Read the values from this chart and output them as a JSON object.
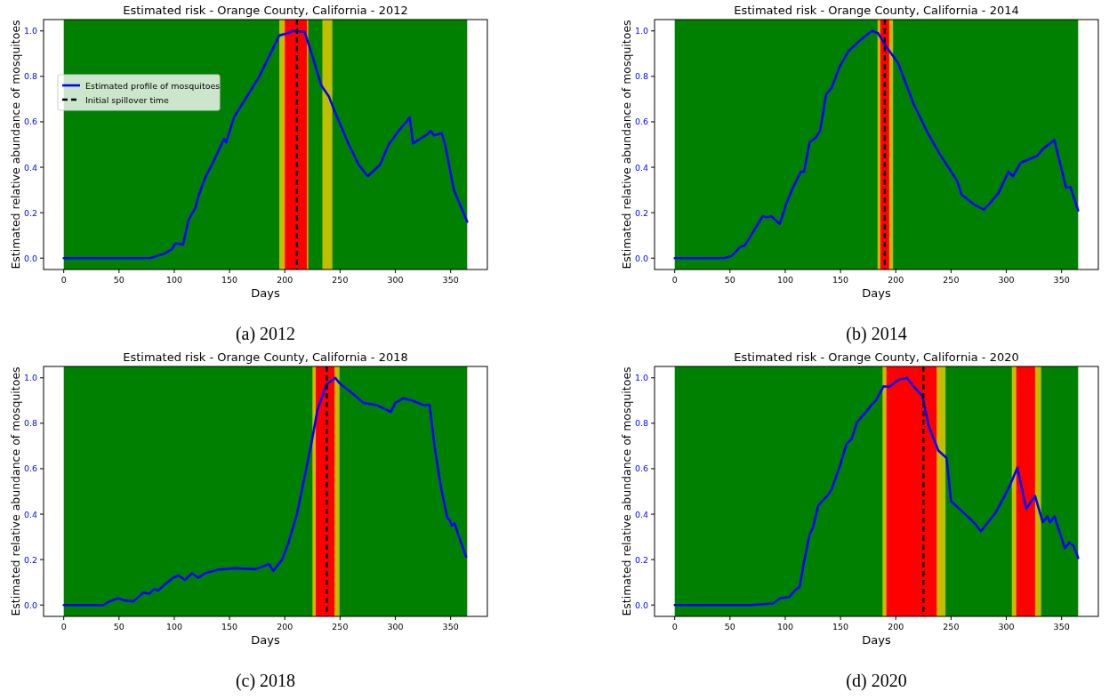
{
  "chart_data": [
    {
      "type": "line",
      "title": "Estimated risk - Orange County, California - 2012",
      "xlabel": "Days",
      "ylabel": "Estimated relative abundance of mosquitoes",
      "annotations": [
        "(a) 2012"
      ],
      "legend": "top left",
      "xlim": [
        -18.25,
        383.25
      ],
      "ylim": [
        -0.05,
        1.05
      ],
      "xticks": [
        0,
        50,
        100,
        150,
        200,
        250,
        300,
        350
      ],
      "yticks": [
        {
          "value": 0,
          "label": "0.0"
        },
        {
          "value": 0.2,
          "label": "0.2"
        },
        {
          "value": 0.4,
          "label": "0.4"
        },
        {
          "value": 0.6,
          "label": "0.6"
        },
        {
          "value": 0.8,
          "label": "0.8"
        },
        {
          "value": 1,
          "label": "1.0"
        }
      ],
      "grid": false,
      "line_style": "solid",
      "marker": "none",
      "bands": [
        {
          "axis": "x",
          "from": 0,
          "to": 365,
          "color": "#008000"
        },
        {
          "axis": "x",
          "from": 195,
          "to": 221,
          "color": "#bfbf00"
        },
        {
          "axis": "x",
          "from": 199,
          "to": 221,
          "color": "#ffa500"
        },
        {
          "axis": "x",
          "from": 200,
          "to": 220,
          "color": "#ff0000"
        },
        {
          "axis": "x",
          "from": 234,
          "to": 243,
          "color": "#bfbf00"
        }
      ],
      "ref_lines": [
        {
          "axis": "x",
          "value": 211,
          "label": "Initial spillover time",
          "color": "#000000",
          "line_style": "dashed"
        }
      ],
      "series": [
        {
          "name": "Estimated profile of mosquitoes",
          "color": "#0000ff",
          "x": [
            0,
            78,
            91,
            98,
            101,
            108,
            113,
            119,
            122,
            128,
            135,
            145,
            147,
            154,
            163,
            177,
            185,
            195,
            203,
            207,
            218,
            225,
            233,
            240,
            244,
            257,
            267,
            275,
            286,
            294,
            303,
            310,
            313,
            316,
            321,
            329,
            332,
            335,
            342,
            345,
            353,
            365
          ],
          "values": [
            0,
            0,
            0.02,
            0.04,
            0.065,
            0.06,
            0.17,
            0.22,
            0.275,
            0.355,
            0.42,
            0.525,
            0.51,
            0.62,
            0.69,
            0.8,
            0.88,
            0.98,
            0.99,
            1.0,
            0.995,
            0.89,
            0.76,
            0.71,
            0.66,
            0.51,
            0.41,
            0.36,
            0.41,
            0.5,
            0.56,
            0.6,
            0.62,
            0.505,
            0.52,
            0.545,
            0.56,
            0.54,
            0.55,
            0.5,
            0.3,
            0.16
          ]
        }
      ]
    },
    {
      "type": "line",
      "title": "Estimated risk - Orange County, California - 2014",
      "xlabel": "Days",
      "ylabel": "Estimated relative abundance of mosquitoes",
      "annotations": [
        "(b) 2014"
      ],
      "xlim": [
        -18.25,
        383.25
      ],
      "ylim": [
        -0.05,
        1.05
      ],
      "xticks": [
        0,
        50,
        100,
        150,
        200,
        250,
        300,
        350
      ],
      "yticks": [
        {
          "value": 0,
          "label": "0.0"
        },
        {
          "value": 0.2,
          "label": "0.2"
        },
        {
          "value": 0.4,
          "label": "0.4"
        },
        {
          "value": 0.6,
          "label": "0.6"
        },
        {
          "value": 0.8,
          "label": "0.8"
        },
        {
          "value": 1,
          "label": "1.0"
        }
      ],
      "grid": false,
      "line_style": "solid",
      "marker": "none",
      "bands": [
        {
          "axis": "x",
          "from": 0,
          "to": 365,
          "color": "#008000"
        },
        {
          "axis": "x",
          "from": 183.5,
          "to": 197.5,
          "color": "#bfbf00"
        },
        {
          "axis": "x",
          "from": 185,
          "to": 195,
          "color": "#ffa500"
        },
        {
          "axis": "x",
          "from": 186,
          "to": 194,
          "color": "#ff0000"
        }
      ],
      "ref_lines": [
        {
          "axis": "x",
          "value": 190,
          "color": "#000000",
          "line_style": "dashed"
        }
      ],
      "series": [
        {
          "color": "#0000ff",
          "x": [
            0,
            45,
            51.5,
            59.5,
            63.5,
            69,
            74,
            79.5,
            83.5,
            87.5,
            95,
            101,
            106,
            114,
            117,
            122,
            127.5,
            131.5,
            137,
            142,
            149,
            157,
            168,
            173,
            178.5,
            184,
            191.5,
            202,
            216,
            229,
            239.5,
            247.5,
            255.5,
            259.5,
            271.5,
            279.5,
            285,
            293,
            302,
            306,
            313,
            328,
            333,
            343.5,
            354,
            358,
            365
          ],
          "values": [
            0,
            0,
            0.01,
            0.05,
            0.057,
            0.1,
            0.14,
            0.184,
            0.18,
            0.184,
            0.15,
            0.24,
            0.3,
            0.38,
            0.38,
            0.51,
            0.53,
            0.56,
            0.72,
            0.75,
            0.84,
            0.91,
            0.96,
            0.98,
            1.0,
            0.99,
            0.93,
            0.86,
            0.68,
            0.55,
            0.46,
            0.4,
            0.34,
            0.28,
            0.234,
            0.214,
            0.24,
            0.287,
            0.38,
            0.36,
            0.42,
            0.45,
            0.48,
            0.52,
            0.31,
            0.313,
            0.21
          ]
        }
      ]
    },
    {
      "type": "line",
      "title": "Estimated risk - Orange County, California - 2018",
      "xlabel": "Days",
      "ylabel": "Estimated relative abundance of mosquitoes",
      "annotations": [
        "(c) 2018"
      ],
      "xlim": [
        -18.25,
        383.25
      ],
      "ylim": [
        -0.05,
        1.05
      ],
      "xticks": [
        0,
        50,
        100,
        150,
        200,
        250,
        300,
        350
      ],
      "yticks": [
        {
          "value": 0,
          "label": "0.0"
        },
        {
          "value": 0.2,
          "label": "0.2"
        },
        {
          "value": 0.4,
          "label": "0.4"
        },
        {
          "value": 0.6,
          "label": "0.6"
        },
        {
          "value": 0.8,
          "label": "0.8"
        },
        {
          "value": 1,
          "label": "1.0"
        }
      ],
      "grid": false,
      "line_style": "solid",
      "marker": "none",
      "bands": [
        {
          "axis": "x",
          "from": 0,
          "to": 365,
          "color": "#008000"
        },
        {
          "axis": "x",
          "from": 225,
          "to": 249.5,
          "color": "#bfbf00"
        },
        {
          "axis": "x",
          "from": 227,
          "to": 246,
          "color": "#ffa500"
        },
        {
          "axis": "x",
          "from": 228,
          "to": 245,
          "color": "#ff0000"
        }
      ],
      "ref_lines": [
        {
          "axis": "x",
          "value": 238,
          "color": "#000000",
          "line_style": "dashed"
        }
      ],
      "series": [
        {
          "color": "#0000ff",
          "x": [
            0,
            36,
            41.5,
            49.6,
            55,
            63,
            72,
            77.6,
            81.6,
            85.6,
            91,
            99,
            104,
            109.6,
            116,
            121.6,
            128,
            139,
            155,
            173.6,
            185.6,
            189.6,
            197.6,
            203,
            211,
            219,
            224,
            229.6,
            237.6,
            245.6,
            249.6,
            261.6,
            271,
            283,
            296,
            300,
            307,
            315,
            325.6,
            331,
            336,
            341.6,
            347,
            349.6,
            351,
            353.6,
            357.6,
            364
          ],
          "values": [
            0,
            0,
            0.016,
            0.03,
            0.02,
            0.016,
            0.055,
            0.05,
            0.07,
            0.065,
            0.088,
            0.12,
            0.13,
            0.11,
            0.14,
            0.12,
            0.14,
            0.155,
            0.162,
            0.158,
            0.18,
            0.15,
            0.2,
            0.27,
            0.4,
            0.59,
            0.71,
            0.86,
            0.97,
            1.0,
            0.976,
            0.93,
            0.89,
            0.88,
            0.85,
            0.89,
            0.91,
            0.9,
            0.88,
            0.88,
            0.68,
            0.51,
            0.385,
            0.37,
            0.35,
            0.36,
            0.3,
            0.213
          ]
        }
      ]
    },
    {
      "type": "line",
      "title": "Estimated risk - Orange County, California - 2020",
      "xlabel": "Days",
      "ylabel": "Estimated relative abundance of mosquitoes",
      "annotations": [
        "(d) 2020"
      ],
      "xlim": [
        -18.25,
        383.25
      ],
      "ylim": [
        -0.05,
        1.05
      ],
      "xticks": [
        0,
        50,
        100,
        150,
        200,
        250,
        300,
        350
      ],
      "yticks": [
        {
          "value": 0,
          "label": "0.0"
        },
        {
          "value": 0.2,
          "label": "0.2"
        },
        {
          "value": 0.4,
          "label": "0.4"
        },
        {
          "value": 0.6,
          "label": "0.6"
        },
        {
          "value": 0.8,
          "label": "0.8"
        },
        {
          "value": 1,
          "label": "1.0"
        }
      ],
      "grid": false,
      "line_style": "solid",
      "marker": "none",
      "bands": [
        {
          "axis": "x",
          "from": 0,
          "to": 365,
          "color": "#008000"
        },
        {
          "axis": "x",
          "from": 188,
          "to": 245,
          "color": "#bfbf00"
        },
        {
          "axis": "x",
          "from": 190.5,
          "to": 238,
          "color": "#ffa500"
        },
        {
          "axis": "x",
          "from": 191.5,
          "to": 237,
          "color": "#ff0000"
        },
        {
          "axis": "x",
          "from": 305,
          "to": 331.5,
          "color": "#bfbf00"
        },
        {
          "axis": "x",
          "from": 308,
          "to": 327,
          "color": "#ffa500"
        },
        {
          "axis": "x",
          "from": 309,
          "to": 326,
          "color": "#ff0000"
        }
      ],
      "ref_lines": [
        {
          "axis": "x",
          "value": 225,
          "color": "#000000",
          "line_style": "dashed"
        }
      ],
      "series": [
        {
          "color": "#0000ff",
          "x": [
            0,
            69,
            89,
            95.5,
            103.5,
            109,
            113,
            117,
            122,
            125,
            130,
            138,
            142,
            150,
            155.5,
            160,
            165,
            173,
            178,
            182,
            189,
            194,
            202,
            210,
            216,
            224,
            230,
            238.5,
            246,
            250,
            265,
            271.6,
            277,
            290,
            298,
            304,
            310,
            318,
            326,
            333,
            337,
            339.6,
            343.6,
            353,
            357,
            361,
            365
          ],
          "values": [
            0,
            0,
            0.007,
            0.03,
            0.035,
            0.065,
            0.08,
            0.19,
            0.31,
            0.34,
            0.44,
            0.48,
            0.51,
            0.62,
            0.71,
            0.73,
            0.805,
            0.85,
            0.88,
            0.9,
            0.963,
            0.96,
            0.99,
            1.0,
            0.963,
            0.92,
            0.785,
            0.68,
            0.647,
            0.457,
            0.39,
            0.358,
            0.325,
            0.404,
            0.476,
            0.535,
            0.604,
            0.424,
            0.48,
            0.364,
            0.39,
            0.364,
            0.39,
            0.25,
            0.275,
            0.26,
            0.207
          ]
        }
      ]
    }
  ]
}
